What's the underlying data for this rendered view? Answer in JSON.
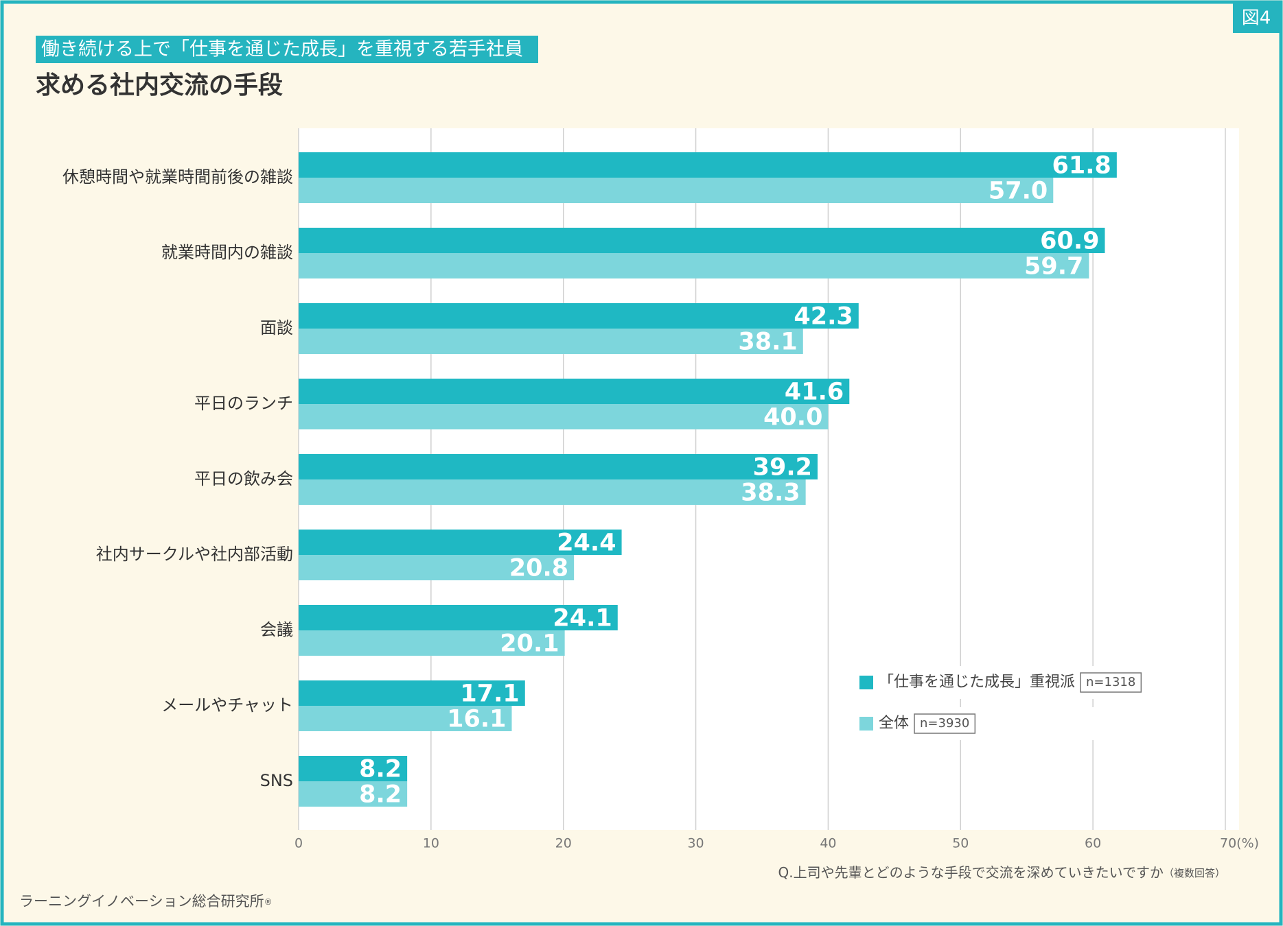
{
  "figure_label": "図4",
  "subtitle": "働き続ける上で「仕事を通じた成長」を重視する若手社員",
  "chart_data": {
    "type": "hbar",
    "title": "求める社内交流の手段",
    "categories": [
      "休憩時間や就業時間前後の雑談",
      "就業時間内の雑談",
      "面談",
      "平日のランチ",
      "平日の飲み会",
      "社内サークルや社内部活動",
      "会議",
      "メールやチャット",
      "SNS"
    ],
    "series": [
      {
        "name": "「仕事を通じた成長」重視派",
        "sample_size": "n=1318",
        "color": "#1fb8c3",
        "values": [
          61.8,
          60.9,
          42.3,
          41.6,
          39.2,
          24.4,
          24.1,
          17.1,
          8.2
        ],
        "value_labels": [
          "61.8",
          "60.9",
          "42.3",
          "41.6",
          "39.2",
          "24.4",
          "24.1",
          "17.1",
          "8.2"
        ]
      },
      {
        "name": "全体",
        "sample_size": "n=3930",
        "color": "#7dd6dc",
        "values": [
          57.0,
          59.7,
          38.1,
          40.0,
          38.3,
          20.8,
          20.1,
          16.1,
          8.2
        ],
        "value_labels": [
          "57.0",
          "59.7",
          "38.1",
          "40.0",
          "38.3",
          "20.8",
          "20.1",
          "16.1",
          "8.2"
        ]
      }
    ],
    "xlim": [
      0,
      70
    ],
    "xticks": [
      0,
      10,
      20,
      30,
      40,
      50,
      60,
      {
        "value": 70,
        "label": "70(%)"
      }
    ],
    "grid": true,
    "question": "Q.上司や先輩とどのような手段で交流を深めていきたいですか",
    "question_note": "（複数回答）"
  },
  "source": "ラーニングイノベーション総合研究所",
  "source_mark": "®"
}
